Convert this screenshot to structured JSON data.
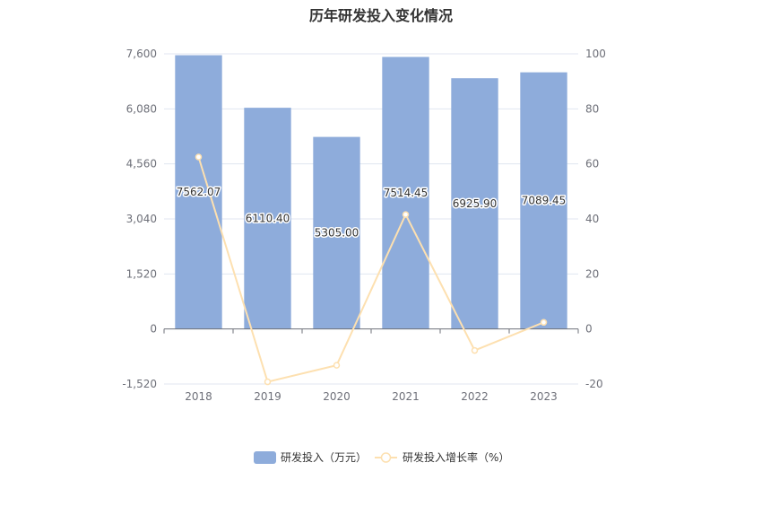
{
  "chart_data": {
    "type": "bar",
    "title": "历年研发投入变化情况",
    "categories": [
      "2018",
      "2019",
      "2020",
      "2021",
      "2022",
      "2023"
    ],
    "series": [
      {
        "name": "研发投入（万元）",
        "type": "bar",
        "axis": "left",
        "color": "#8eacdb",
        "values": [
          7562.07,
          6110.4,
          5305.0,
          7514.45,
          6925.9,
          7089.45
        ],
        "labels": [
          "7562.07",
          "6110.40",
          "5305.00",
          "7514.45",
          "6925.90",
          "7089.45"
        ]
      },
      {
        "name": "研发投入增长率（%）",
        "type": "line",
        "axis": "right",
        "color": "#fde0b0",
        "values": [
          62.5,
          -19.2,
          -13.2,
          41.6,
          -7.8,
          2.4
        ]
      }
    ],
    "y_left": {
      "min": -1520,
      "max": 7600,
      "ticks": [
        -1520,
        0,
        1520,
        3040,
        4560,
        6080,
        7600
      ],
      "tick_labels": [
        "-1,520",
        "0",
        "1,520",
        "3,040",
        "4,560",
        "6,080",
        "7,600"
      ]
    },
    "y_right": {
      "min": -20,
      "max": 100,
      "ticks": [
        -20,
        0,
        20,
        40,
        60,
        80,
        100
      ],
      "tick_labels": [
        "-20",
        "0",
        "20",
        "40",
        "60",
        "80",
        "100"
      ]
    },
    "grid": true,
    "legend": "bottom-center"
  }
}
